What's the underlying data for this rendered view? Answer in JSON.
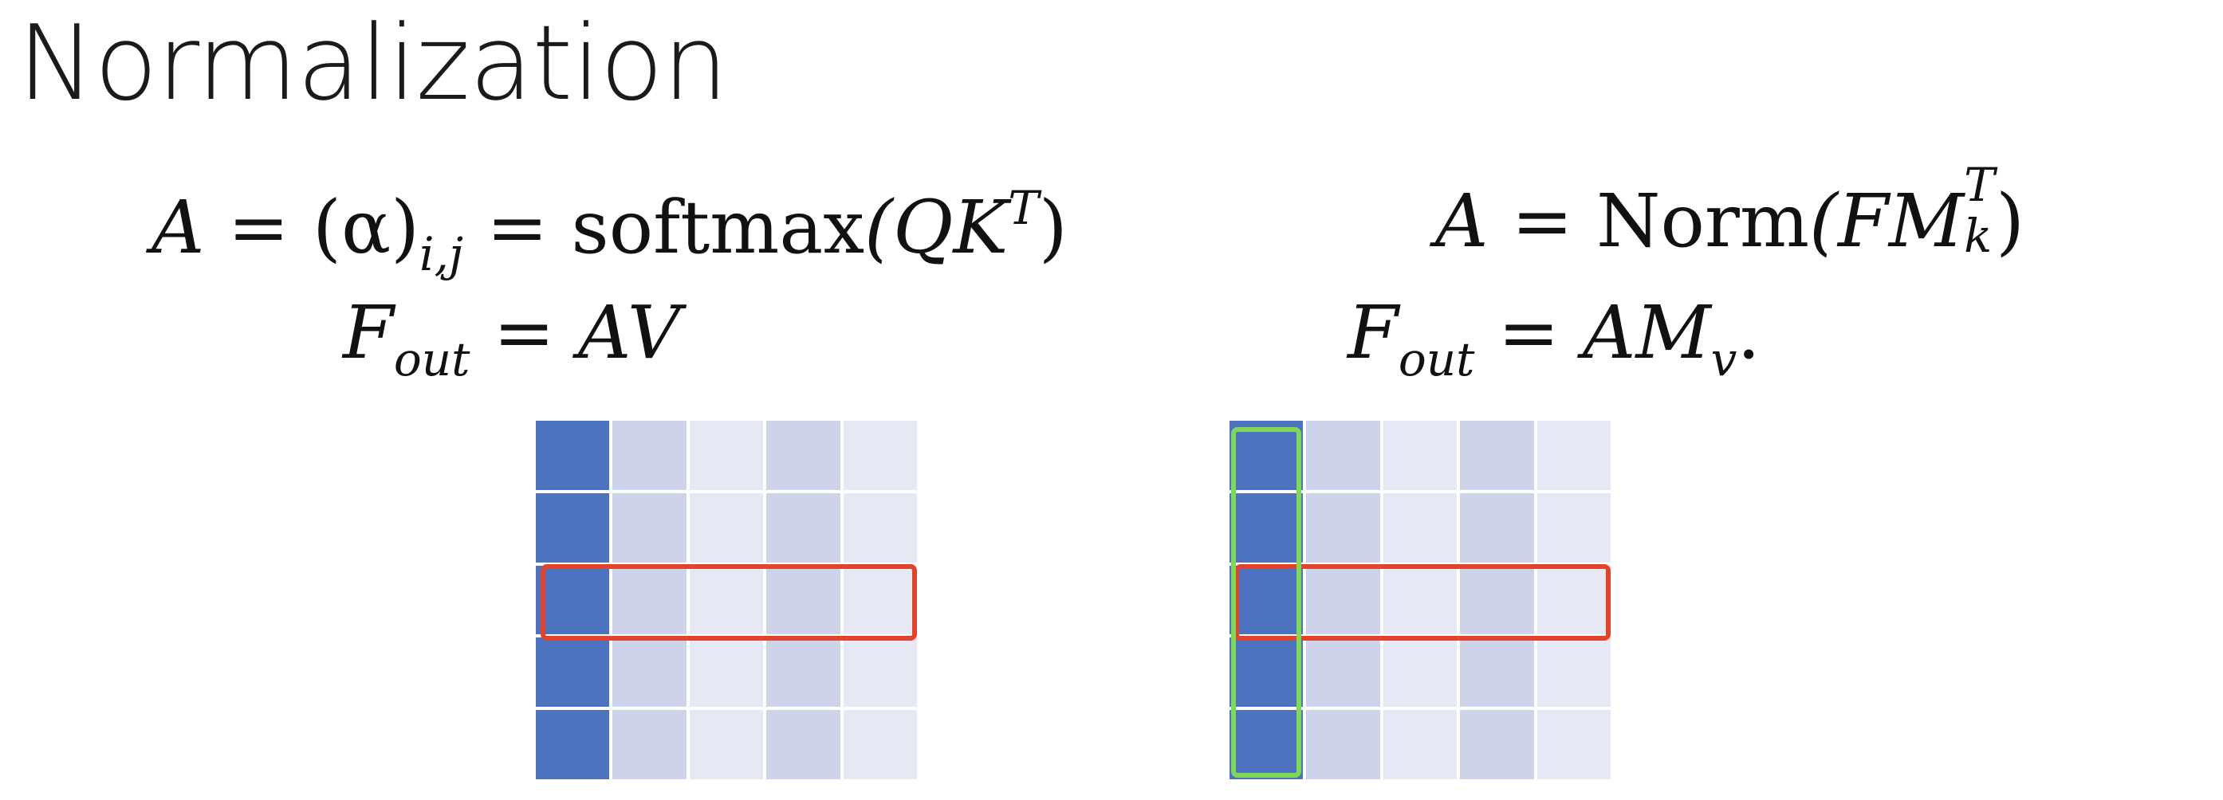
{
  "slide": {
    "title": "Normalization"
  },
  "left": {
    "eq1": {
      "lhs": "A",
      "eq": "=",
      "alpha": "(α)",
      "alpha_sub": "i,j",
      "eq2": "=",
      "fn": "softmax",
      "open": "(QK",
      "sup": "T",
      "close": ")"
    },
    "eq2": {
      "lhs": "F",
      "sub": "out",
      "eq": "=",
      "rhs": "AV"
    }
  },
  "right": {
    "eq1": {
      "lhs": "A",
      "eq": "=",
      "fn": "Norm",
      "open": "(FM",
      "sup": "T",
      "sub": "k",
      "close": ")"
    },
    "eq2": {
      "lhs": "F",
      "sub": "out",
      "eq": "=",
      "rhs": "AM",
      "rhs_sub": "v",
      "end": "."
    }
  },
  "colors": {
    "dark_blue": "#4C72C0",
    "light_col": "#CDD3E8",
    "lighter_col": "#E6E8F3",
    "red_box": "#E2432B",
    "green_box": "#7ED957",
    "grid_line": "#ffffff"
  },
  "matrix": {
    "rows": 5,
    "cols": 5,
    "column_shades": [
      "dark",
      "light",
      "lighter",
      "light",
      "lighter"
    ],
    "highlight_row": 3,
    "right_highlight_column": 1
  }
}
